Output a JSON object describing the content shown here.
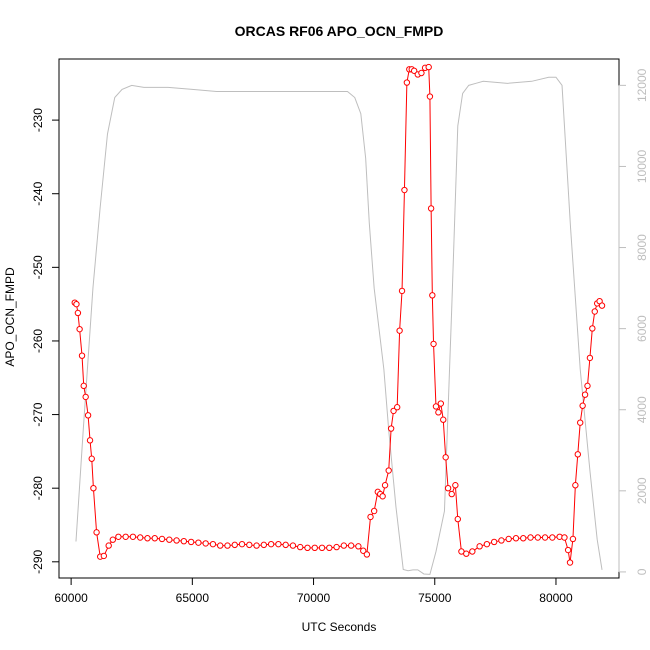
{
  "chart_data": {
    "type": "line",
    "title": "ORCAS RF06 APO_OCN_FMPD",
    "xlabel": "UTC Seconds",
    "ylabel": "APO_OCN_FMPD",
    "xlim": [
      59500,
      82600
    ],
    "ylim": [
      -292.2,
      -221.7
    ],
    "x_ticks": [
      60000,
      65000,
      70000,
      75000,
      80000
    ],
    "y_ticks": [
      -230,
      -240,
      -250,
      -260,
      -270,
      -280,
      -290
    ],
    "y2lim": [
      -150,
      12650
    ],
    "y2_ticks": [
      0,
      2000,
      4000,
      6000,
      8000,
      10000,
      12000
    ],
    "grid": false,
    "colors": {
      "primary": "#ff0000",
      "secondary": "#bebebe",
      "frame": "#000000"
    },
    "series": [
      {
        "axis": "left",
        "style": "line+circle",
        "x": [
          60150,
          60220,
          60280,
          60350,
          60450,
          60520,
          60600,
          60700,
          60780,
          60850,
          60920,
          61050,
          61200,
          61350,
          61550,
          61720,
          61950,
          62250,
          62550,
          62850,
          63150,
          63450,
          63750,
          64050,
          64350,
          64650,
          64950,
          65250,
          65550,
          65850,
          66150,
          66450,
          66750,
          67050,
          67350,
          67650,
          67950,
          68250,
          68550,
          68850,
          69150,
          69450,
          69750,
          70050,
          70350,
          70650,
          70950,
          71250,
          71550,
          71850,
          72050,
          72200,
          72350,
          72500,
          72650,
          72750,
          72850,
          72950,
          73100,
          73200,
          73300,
          73450,
          73550,
          73650,
          73750,
          73850,
          73950,
          74050,
          74150,
          74300,
          74450,
          74600,
          74750,
          74800,
          74850,
          74900,
          74950,
          75050,
          75150,
          75250,
          75350,
          75450,
          75550,
          75700,
          75850,
          75950,
          76100,
          76300,
          76550,
          76850,
          77150,
          77450,
          77750,
          78050,
          78350,
          78650,
          78950,
          79250,
          79550,
          79850,
          80150,
          80350,
          80500,
          80580,
          80700,
          80800,
          80900,
          81000,
          81100,
          81200,
          81300,
          81400,
          81500,
          81600,
          81700,
          81800,
          81900
        ],
        "y": [
          -254.8,
          -255.0,
          -256.2,
          -258.4,
          -262.0,
          -266.1,
          -267.6,
          -270.1,
          -273.5,
          -276.0,
          -280.0,
          -286.0,
          -289.3,
          -289.2,
          -287.8,
          -287.0,
          -286.6,
          -286.6,
          -286.6,
          -286.7,
          -286.8,
          -286.8,
          -286.9,
          -287.0,
          -287.1,
          -287.2,
          -287.3,
          -287.4,
          -287.5,
          -287.6,
          -287.8,
          -287.8,
          -287.7,
          -287.6,
          -287.7,
          -287.8,
          -287.7,
          -287.6,
          -287.6,
          -287.7,
          -287.8,
          -288.0,
          -288.1,
          -288.1,
          -288.1,
          -288.1,
          -288.0,
          -287.8,
          -287.8,
          -287.9,
          -288.5,
          -289.0,
          -283.9,
          -283.1,
          -280.5,
          -280.8,
          -281.1,
          -279.6,
          -277.6,
          -271.9,
          -269.5,
          -269.0,
          -258.6,
          -253.2,
          -239.5,
          -224.9,
          -223.1,
          -223.1,
          -223.3,
          -223.8,
          -223.6,
          -222.9,
          -222.8,
          -226.8,
          -242.0,
          -253.8,
          -260.4,
          -268.9,
          -269.7,
          -268.5,
          -270.7,
          -275.8,
          -280.0,
          -280.8,
          -279.6,
          -284.2,
          -288.6,
          -288.9,
          -288.6,
          -287.9,
          -287.6,
          -287.3,
          -287.1,
          -286.9,
          -286.8,
          -286.8,
          -286.7,
          -286.7,
          -286.7,
          -286.7,
          -286.6,
          -286.7,
          -288.4,
          -290.1,
          -286.9,
          -279.6,
          -275.4,
          -271.1,
          -268.8,
          -267.3,
          -266.1,
          -262.3,
          -258.3,
          -256.0,
          -254.9,
          -254.6,
          -255.2
        ]
      },
      {
        "axis": "right",
        "style": "line",
        "x": [
          60200,
          60500,
          60900,
          61200,
          61500,
          61800,
          62100,
          62500,
          63000,
          64000,
          65000,
          66000,
          67000,
          68000,
          69000,
          70000,
          71000,
          71400,
          71700,
          71950,
          72150,
          72300,
          72500,
          72700,
          72900,
          73100,
          73400,
          73700,
          73900,
          74100,
          74300,
          74550,
          74800,
          75050,
          75400,
          75700,
          75950,
          76150,
          76400,
          76700,
          77000,
          78000,
          79000,
          79700,
          80000,
          80250,
          80600,
          81000,
          81400,
          81700,
          81900
        ],
        "y": [
          750,
          3500,
          7000,
          9000,
          10800,
          11700,
          11900,
          12000,
          11950,
          11950,
          11900,
          11850,
          11850,
          11850,
          11850,
          11850,
          11850,
          11850,
          11700,
          11300,
          10200,
          8600,
          7000,
          6000,
          5000,
          3500,
          1600,
          60,
          30,
          50,
          50,
          -50,
          -60,
          500,
          1500,
          6500,
          11000,
          11800,
          12000,
          12050,
          12100,
          12050,
          12100,
          12200,
          12200,
          12000,
          8500,
          5000,
          2500,
          800,
          50
        ]
      }
    ]
  }
}
